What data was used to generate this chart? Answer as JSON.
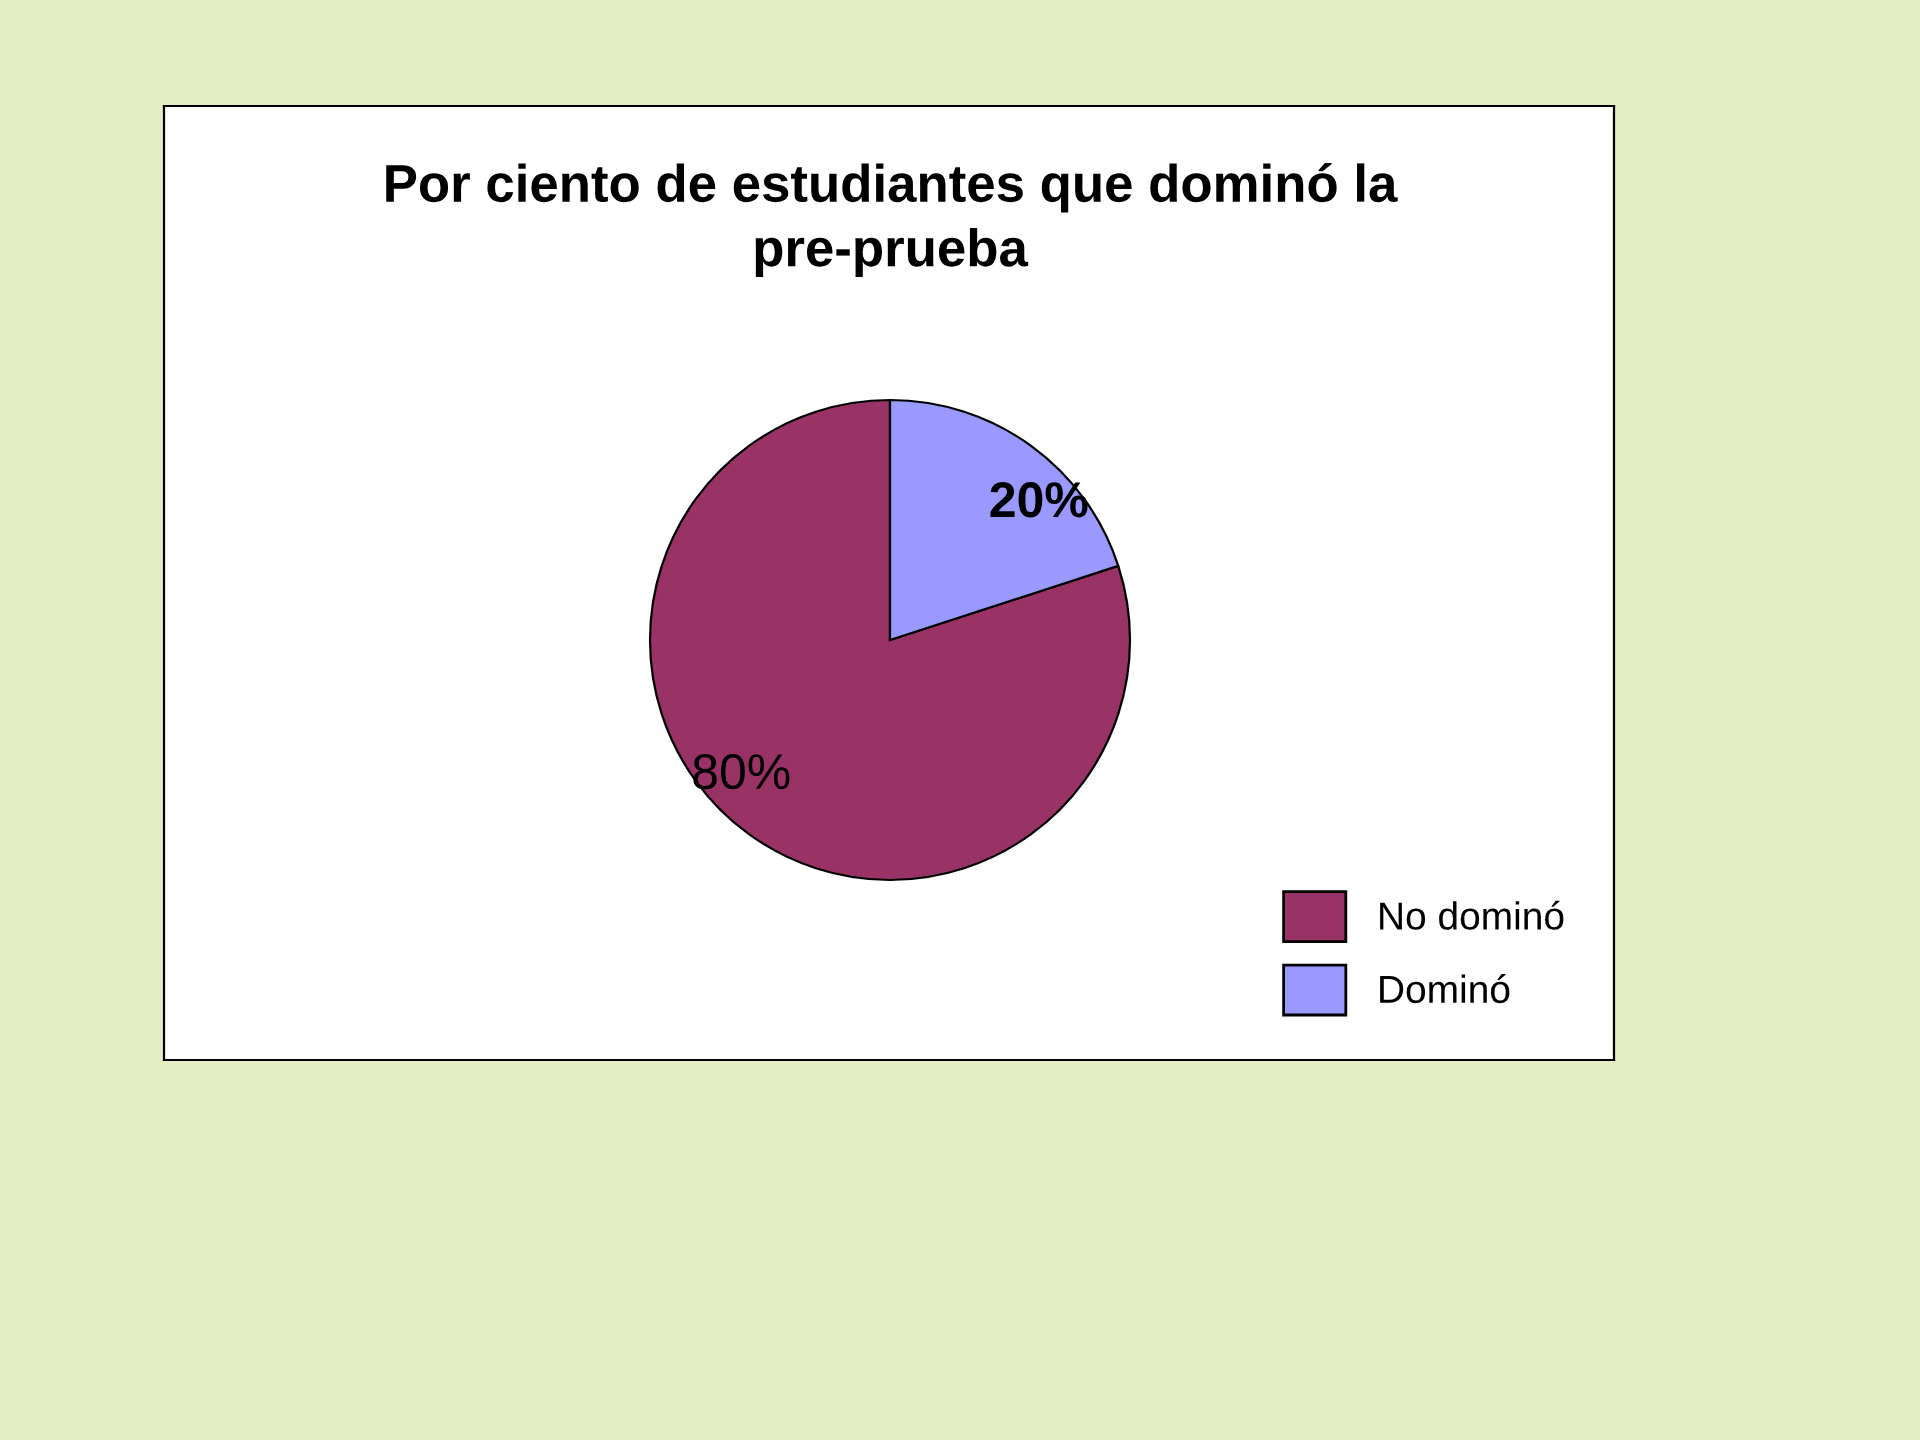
{
  "chart_data": {
    "type": "pie",
    "title": "Por ciento de estudiantes que dominó la\npre-prueba",
    "categories": [
      "No dominó",
      "Dominó"
    ],
    "values": [
      80,
      20
    ],
    "colors": [
      "#993366",
      "#9999ff"
    ],
    "value_labels": [
      "80%",
      "20%"
    ],
    "legend": "bottom right"
  }
}
